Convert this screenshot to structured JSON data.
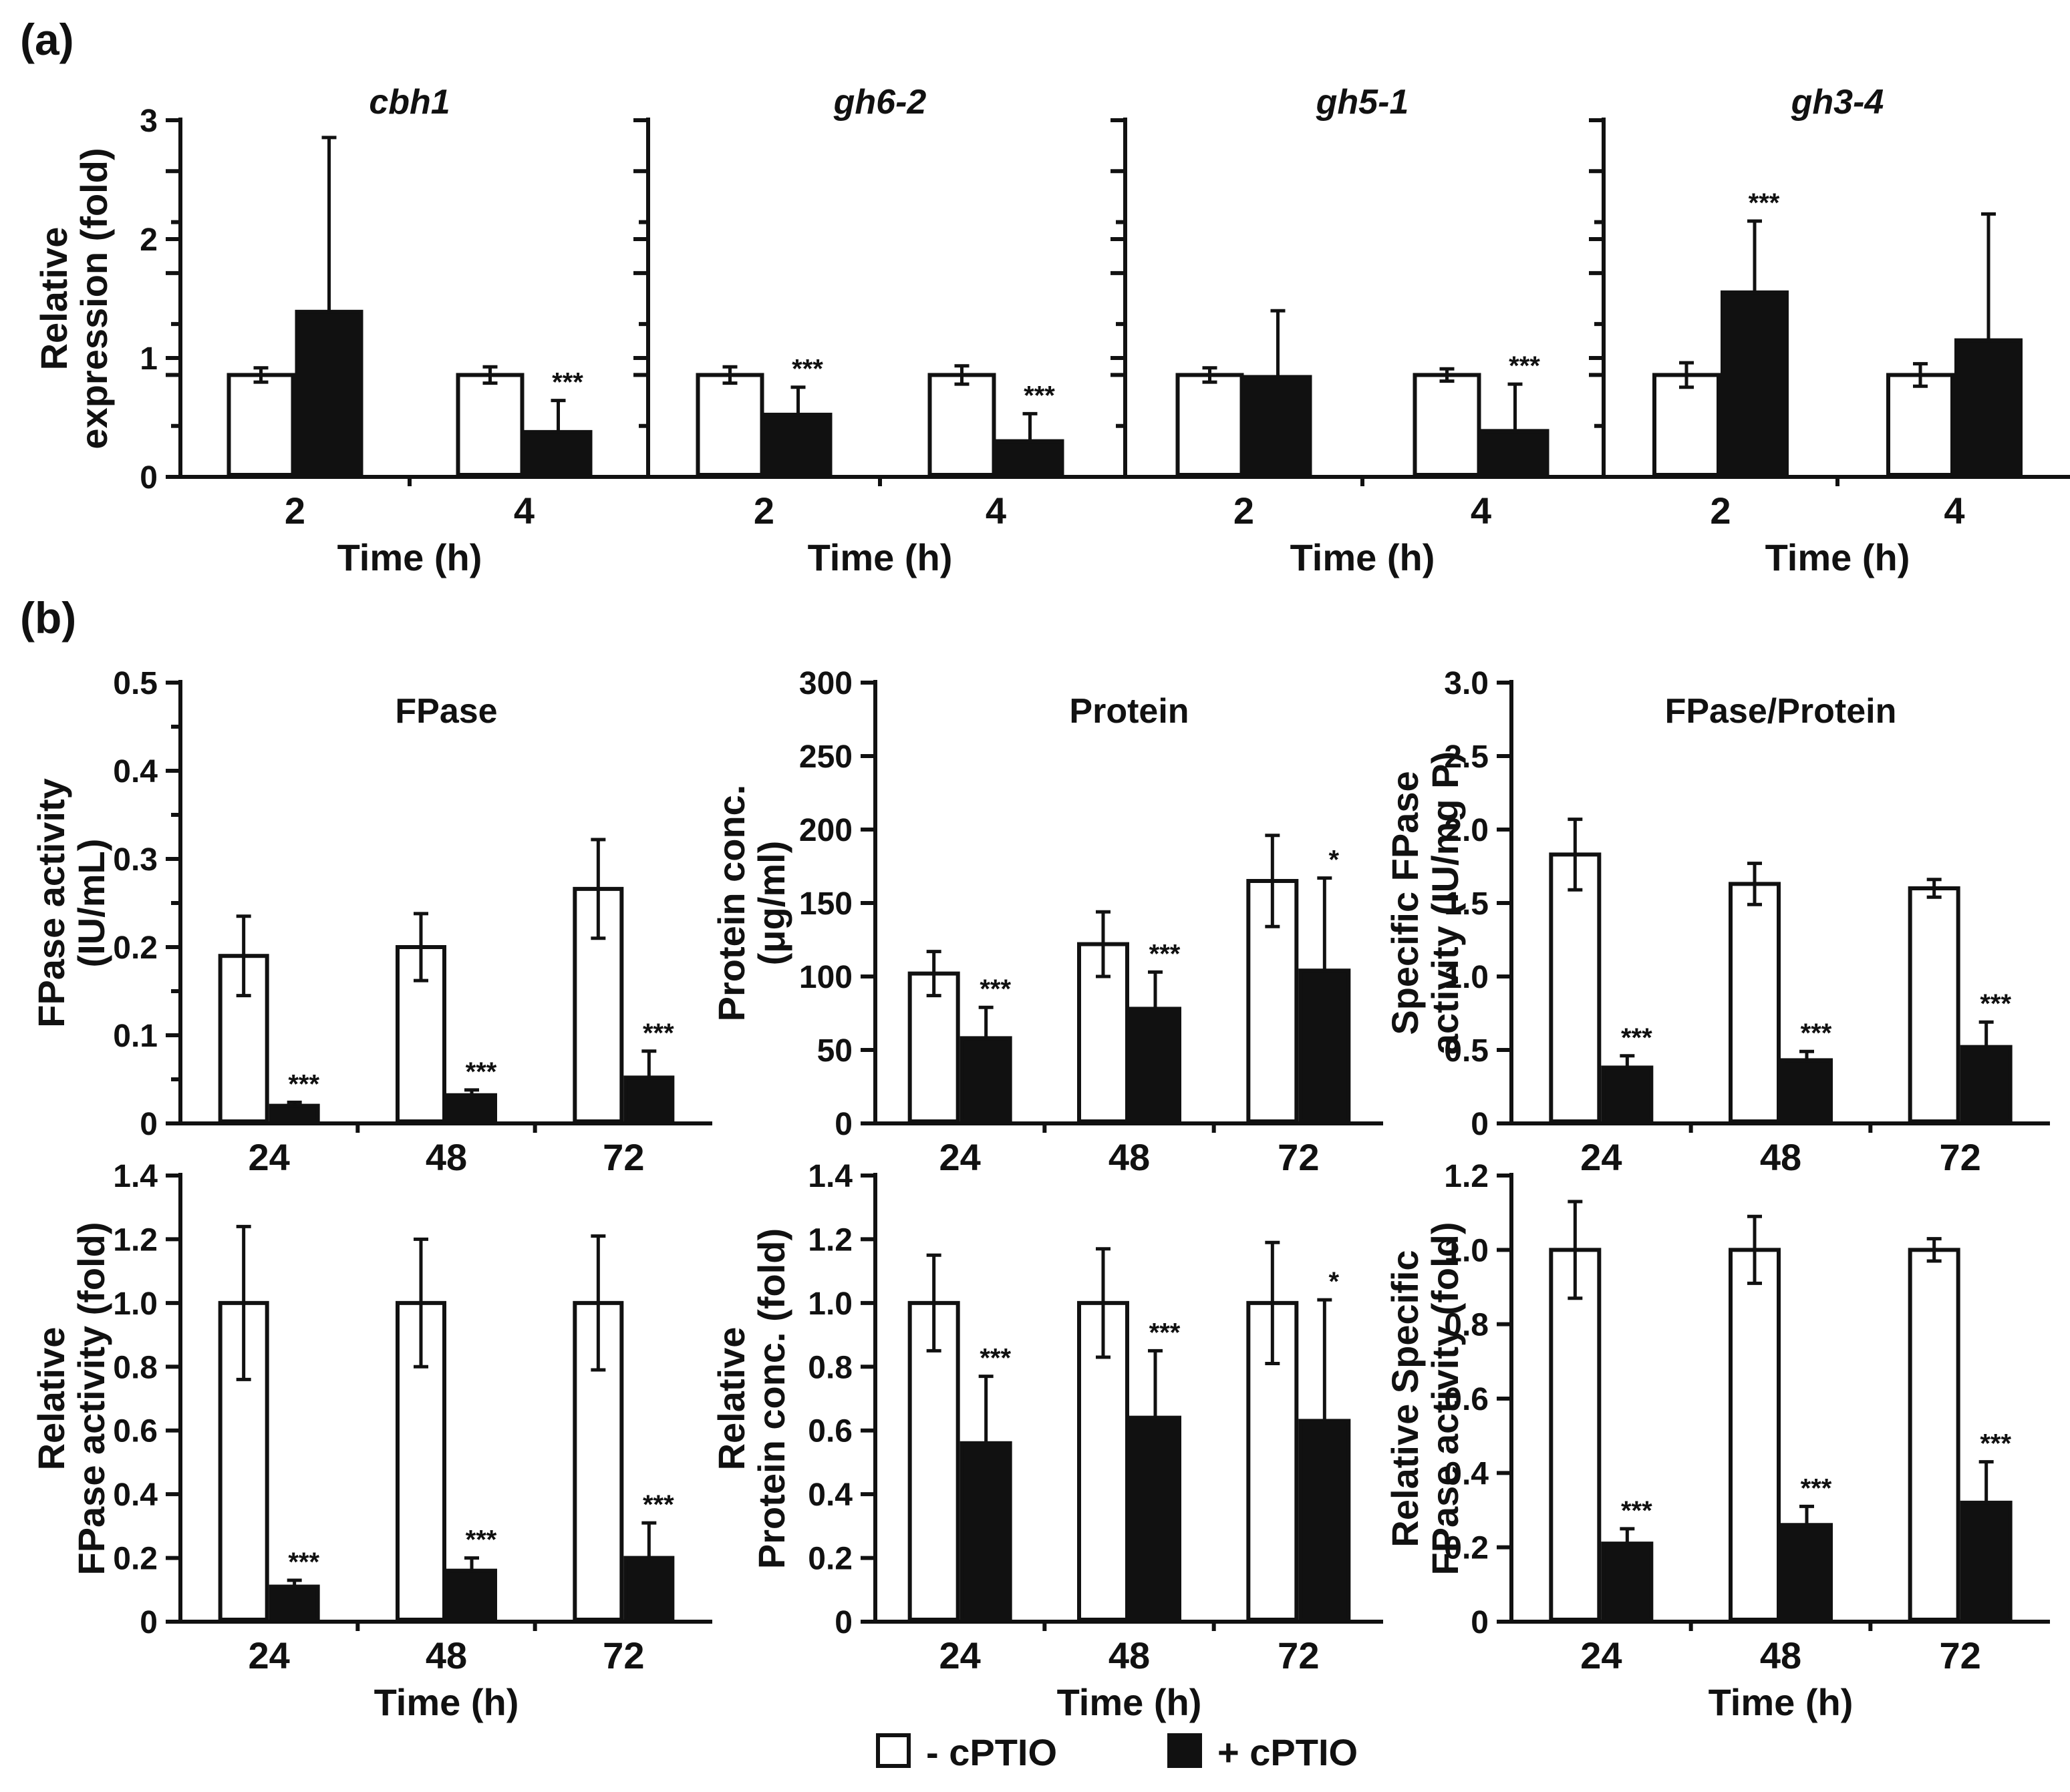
{
  "panel_labels": [
    "(a)",
    "(b)"
  ],
  "legend": {
    "items": [
      {
        "label": "- cPTIO",
        "fill": "#ffffff"
      },
      {
        "label": "+ cPTIO",
        "fill": "#111111"
      }
    ]
  },
  "colors": {
    "ink": "#111111",
    "control_fill": "#ffffff",
    "treated_fill": "#111111"
  },
  "chart_data": [
    {
      "type": "bar",
      "panel": "(a)",
      "title": "cbh1",
      "italic_title": true,
      "xlabel": "Time (h)",
      "ylabel_lines": [
        "Relative",
        "expression (fold)"
      ],
      "categories": [
        "2",
        "4"
      ],
      "ylim": [
        0,
        3.5
      ],
      "yticks": [
        "0",
        "1",
        "2",
        "3"
      ],
      "minor_ticks": [
        0.5,
        1.5,
        2.5,
        3.5
      ],
      "series": [
        {
          "name": "- cPTIO",
          "values": [
            1.0,
            1.0
          ],
          "errors": [
            0.07,
            0.08
          ]
        },
        {
          "name": "+ cPTIO",
          "values": [
            1.62,
            0.44
          ],
          "errors": [
            1.71,
            0.31
          ]
        }
      ],
      "significance": [
        [
          "",
          ""
        ],
        [
          "",
          "***"
        ]
      ]
    },
    {
      "type": "bar",
      "panel": "(a)",
      "title": "gh6-2",
      "italic_title": true,
      "xlabel": "Time (h)",
      "ylabel_lines": [],
      "categories": [
        "2",
        "4"
      ],
      "ylim": [
        0,
        3.5
      ],
      "yticks": [
        "",
        "",
        "",
        ""
      ],
      "minor_ticks": [
        0.5,
        1.5,
        2.5,
        3.5
      ],
      "series": [
        {
          "name": "- cPTIO",
          "values": [
            1.0,
            1.0
          ],
          "errors": [
            0.08,
            0.09
          ]
        },
        {
          "name": "+ cPTIO",
          "values": [
            0.61,
            0.35
          ],
          "errors": [
            0.27,
            0.27
          ]
        }
      ],
      "significance": [
        [
          "",
          "***"
        ],
        [
          "",
          "***"
        ]
      ]
    },
    {
      "type": "bar",
      "panel": "(a)",
      "title": "gh5-1",
      "italic_title": true,
      "xlabel": "Time (h)",
      "ylabel_lines": [],
      "categories": [
        "2",
        "4"
      ],
      "ylim": [
        0,
        3.5
      ],
      "yticks": [
        "",
        "",
        "",
        ""
      ],
      "minor_ticks": [
        0.5,
        1.5,
        2.5,
        3.5
      ],
      "series": [
        {
          "name": "- cPTIO",
          "values": [
            1.0,
            1.0
          ],
          "errors": [
            0.07,
            0.06
          ]
        },
        {
          "name": "+ cPTIO",
          "values": [
            0.98,
            0.45
          ],
          "errors": [
            0.65,
            0.46
          ]
        }
      ],
      "significance": [
        [
          "",
          ""
        ],
        [
          "",
          "***"
        ]
      ]
    },
    {
      "type": "bar",
      "panel": "(a)",
      "title": "gh3-4",
      "italic_title": true,
      "xlabel": "Time (h)",
      "ylabel_lines": [],
      "categories": [
        "2",
        "4"
      ],
      "ylim": [
        0,
        3.5
      ],
      "yticks": [
        "",
        "",
        "",
        ""
      ],
      "minor_ticks": [
        0.5,
        1.5,
        2.5,
        3.5
      ],
      "series": [
        {
          "name": "- cPTIO",
          "values": [
            1.0,
            1.0
          ],
          "errors": [
            0.12,
            0.11
          ]
        },
        {
          "name": "+ cPTIO",
          "values": [
            1.81,
            1.34
          ],
          "errors": [
            0.7,
            1.24
          ]
        }
      ],
      "significance": [
        [
          "",
          "***"
        ],
        [
          "",
          ""
        ]
      ]
    },
    {
      "type": "bar",
      "panel": "(b)",
      "title": "FPase",
      "italic_title": false,
      "xlabel": "",
      "ylabel_lines": [
        "FPase activity",
        "(IU/mL)"
      ],
      "categories": [
        "24",
        "48",
        "72"
      ],
      "ylim": [
        0,
        0.5
      ],
      "yticks": [
        "0",
        "0.1",
        "0.2",
        "0.3",
        "0.4",
        "0.5"
      ],
      "minor_ticks": [
        0.05,
        0.15,
        0.25,
        0.35,
        0.45
      ],
      "series": [
        {
          "name": "- cPTIO",
          "values": [
            0.19,
            0.2,
            0.266
          ],
          "errors": [
            0.045,
            0.038,
            0.056
          ]
        },
        {
          "name": "+ cPTIO",
          "values": [
            0.02,
            0.032,
            0.052
          ],
          "errors": [
            0.004,
            0.006,
            0.03
          ]
        }
      ],
      "significance": [
        [
          "",
          "***"
        ],
        [
          "",
          "***"
        ],
        [
          "",
          "***"
        ]
      ]
    },
    {
      "type": "bar",
      "panel": "(b)",
      "title": "Protein",
      "italic_title": false,
      "xlabel": "",
      "ylabel_lines": [
        "Protein conc.",
        "(μg/ml)"
      ],
      "categories": [
        "24",
        "48",
        "72"
      ],
      "ylim": [
        0,
        300
      ],
      "yticks": [
        "0",
        "50",
        "100",
        "150",
        "200",
        "250",
        "300"
      ],
      "minor_ticks": [],
      "series": [
        {
          "name": "- cPTIO",
          "values": [
            102,
            122,
            165
          ],
          "errors": [
            15,
            22,
            31
          ]
        },
        {
          "name": "+ cPTIO",
          "values": [
            58,
            78,
            104
          ],
          "errors": [
            21,
            25,
            63
          ]
        }
      ],
      "significance": [
        [
          "",
          "***"
        ],
        [
          "",
          "***"
        ],
        [
          "",
          "*"
        ]
      ]
    },
    {
      "type": "bar",
      "panel": "(b)",
      "title": "FPase/Protein",
      "italic_title": false,
      "xlabel": "",
      "ylabel_lines": [
        "Specific FPase",
        "activity (IU/mg P)"
      ],
      "categories": [
        "24",
        "48",
        "72"
      ],
      "ylim": [
        0,
        3.0
      ],
      "yticks": [
        "0",
        "0.5",
        "1.0",
        "1.5",
        "2.0",
        "2.5",
        "3.0"
      ],
      "minor_ticks": [],
      "series": [
        {
          "name": "- cPTIO",
          "values": [
            1.83,
            1.63,
            1.6
          ],
          "errors": [
            0.24,
            0.14,
            0.06
          ]
        },
        {
          "name": "+ cPTIO",
          "values": [
            0.38,
            0.43,
            0.52
          ],
          "errors": [
            0.08,
            0.06,
            0.17
          ]
        }
      ],
      "significance": [
        [
          "",
          "***"
        ],
        [
          "",
          "***"
        ],
        [
          "",
          "***"
        ]
      ]
    },
    {
      "type": "bar",
      "panel": "(b)",
      "title": "",
      "italic_title": false,
      "xlabel": "Time (h)",
      "ylabel_lines": [
        "Relative",
        "FPase activity (fold)"
      ],
      "categories": [
        "24",
        "48",
        "72"
      ],
      "ylim": [
        0,
        1.4
      ],
      "yticks": [
        "0",
        "0.2",
        "0.4",
        "0.6",
        "0.8",
        "1.0",
        "1.2",
        "1.4"
      ],
      "minor_ticks": [],
      "series": [
        {
          "name": "- cPTIO",
          "values": [
            1.0,
            1.0,
            1.0
          ],
          "errors": [
            0.24,
            0.2,
            0.21
          ]
        },
        {
          "name": "+ cPTIO",
          "values": [
            0.11,
            0.16,
            0.2
          ],
          "errors": [
            0.02,
            0.04,
            0.11
          ]
        }
      ],
      "significance": [
        [
          "",
          "***"
        ],
        [
          "",
          "***"
        ],
        [
          "",
          "***"
        ]
      ]
    },
    {
      "type": "bar",
      "panel": "(b)",
      "title": "",
      "italic_title": false,
      "xlabel": "Time (h)",
      "ylabel_lines": [
        "Relative",
        "Protein conc. (fold)"
      ],
      "categories": [
        "24",
        "48",
        "72"
      ],
      "ylim": [
        0,
        1.4
      ],
      "yticks": [
        "0",
        "0.2",
        "0.4",
        "0.6",
        "0.8",
        "1.0",
        "1.2",
        "1.4"
      ],
      "minor_ticks": [],
      "series": [
        {
          "name": "- cPTIO",
          "values": [
            1.0,
            1.0,
            1.0
          ],
          "errors": [
            0.15,
            0.17,
            0.19
          ]
        },
        {
          "name": "+ cPTIO",
          "values": [
            0.56,
            0.64,
            0.63
          ],
          "errors": [
            0.21,
            0.21,
            0.38
          ]
        }
      ],
      "significance": [
        [
          "",
          "***"
        ],
        [
          "",
          "***"
        ],
        [
          "",
          "*"
        ]
      ]
    },
    {
      "type": "bar",
      "panel": "(b)",
      "title": "",
      "italic_title": false,
      "xlabel": "Time (h)",
      "ylabel_lines": [
        "Relative Specific",
        "FPase activity (fold)"
      ],
      "categories": [
        "24",
        "48",
        "72"
      ],
      "ylim": [
        0,
        1.2
      ],
      "yticks": [
        "0",
        "0.2",
        "0.4",
        "0.6",
        "0.8",
        "1.0",
        "1.2"
      ],
      "minor_ticks": [],
      "series": [
        {
          "name": "- cPTIO",
          "values": [
            1.0,
            1.0,
            1.0
          ],
          "errors": [
            0.13,
            0.09,
            0.03
          ]
        },
        {
          "name": "+ cPTIO",
          "values": [
            0.21,
            0.26,
            0.32
          ],
          "errors": [
            0.04,
            0.05,
            0.11
          ]
        }
      ],
      "significance": [
        [
          "",
          "***"
        ],
        [
          "",
          "***"
        ],
        [
          "",
          "***"
        ]
      ]
    }
  ]
}
